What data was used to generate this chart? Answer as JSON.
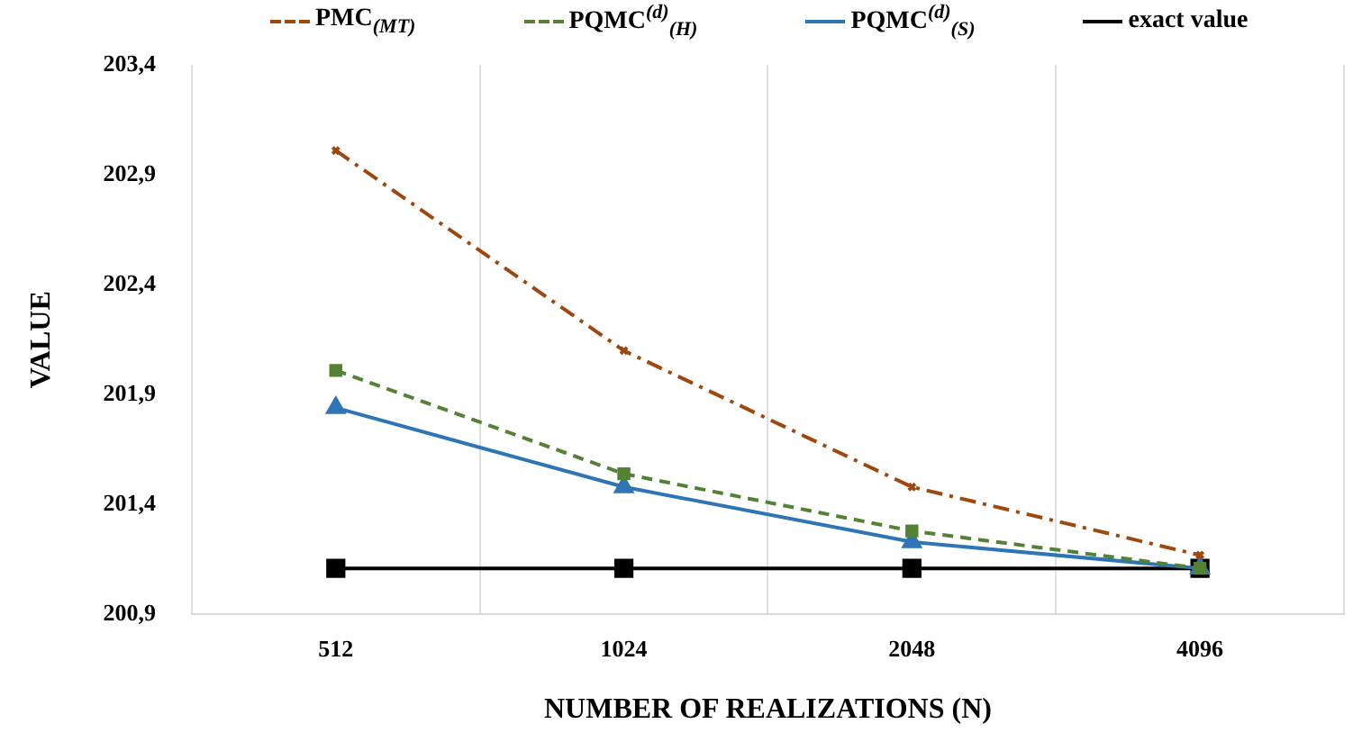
{
  "chart_data": {
    "type": "line",
    "xlabel": "NUMBER OF REALIZATIONS (N)",
    "ylabel": "VALUE",
    "categories": [
      "512",
      "1024",
      "2048",
      "4096"
    ],
    "ylim": [
      200.9,
      203.4
    ],
    "yticks": [
      {
        "value": 200.9,
        "label": "200,9"
      },
      {
        "value": 201.4,
        "label": "201,4"
      },
      {
        "value": 201.9,
        "label": "201,9"
      },
      {
        "value": 202.4,
        "label": "202,4"
      },
      {
        "value": 202.9,
        "label": "202,9"
      },
      {
        "value": 203.4,
        "label": "203,4"
      }
    ],
    "grid": "x",
    "legend": "top",
    "series": [
      {
        "name": "PMC$_{(MT)}$",
        "color": "#9e480e",
        "values": [
          203.01,
          202.1,
          201.48,
          201.17
        ],
        "line_style": "dashdot",
        "marker": "cross"
      },
      {
        "name": "PQMC$^{(d)}$$_{(H)}$",
        "color": "#548235",
        "values": [
          202.01,
          201.54,
          201.28,
          201.11
        ],
        "line_style": "dashed",
        "marker": "square"
      },
      {
        "name": "PQMC$^{(d)}$$_{(S)}$",
        "color": "#2e75b6",
        "values": [
          201.84,
          201.48,
          201.23,
          201.11
        ],
        "line_style": "solid",
        "marker": "triangle"
      },
      {
        "name": "exact value",
        "color": "#000000",
        "values": [
          201.11,
          201.11,
          201.11,
          201.11
        ],
        "line_style": "solid",
        "marker": "square"
      }
    ]
  }
}
